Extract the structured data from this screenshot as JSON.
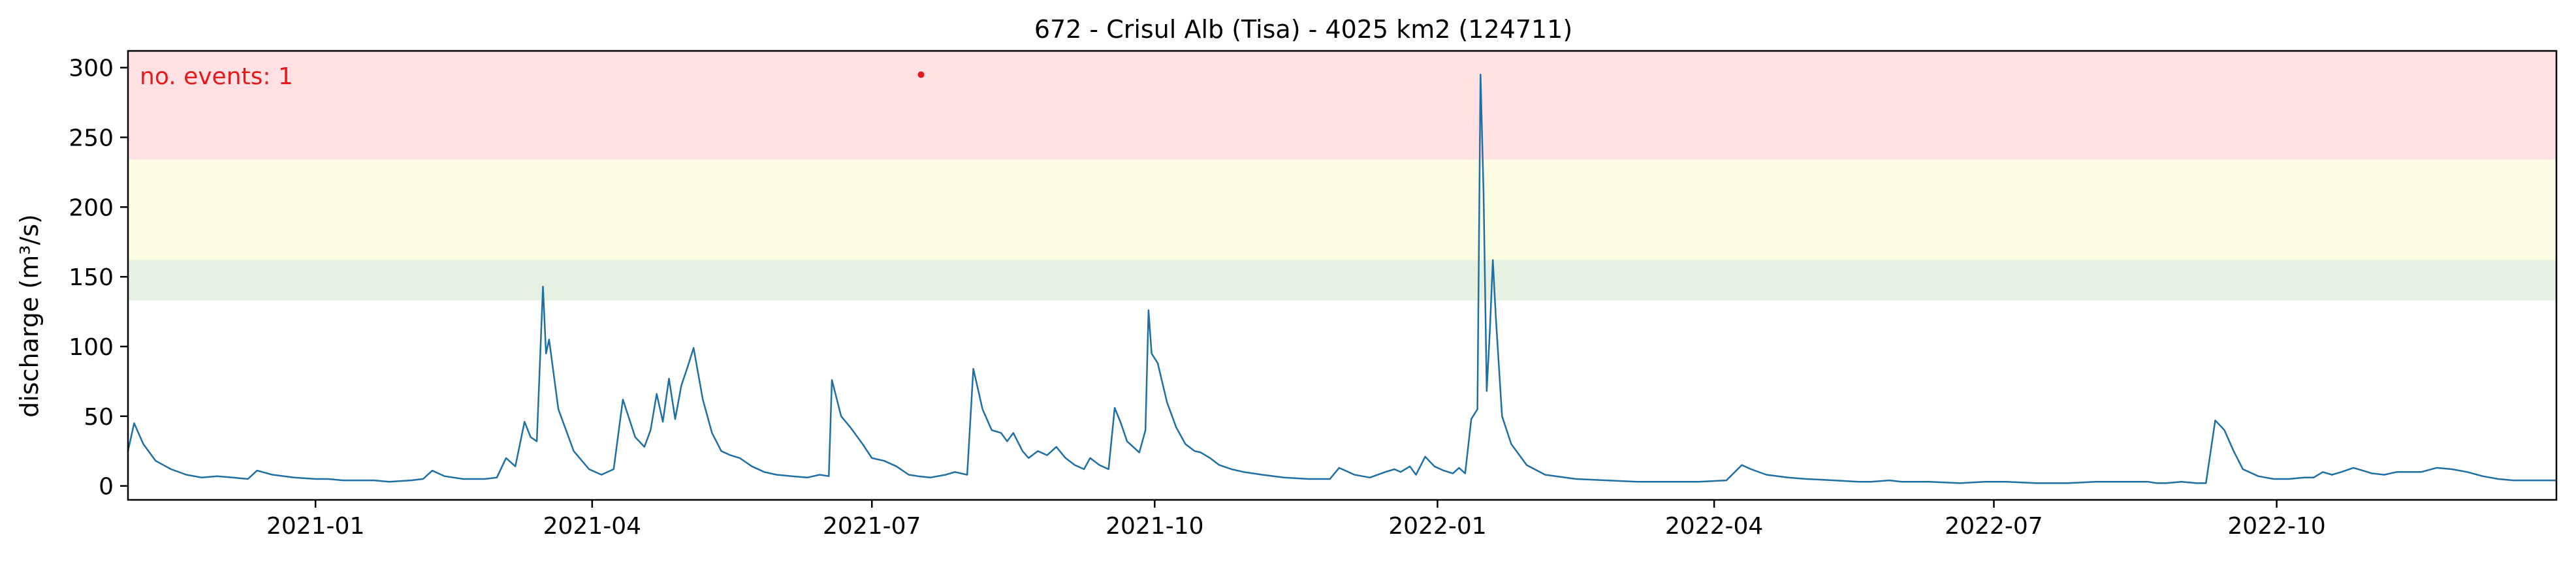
{
  "chart_data": {
    "type": "line",
    "title": "672 - Crisul Alb (Tisa) - 4025 km2 (124711)",
    "xlabel": "",
    "ylabel": "discharge (m³/s)",
    "annotation": "no. events: 1",
    "xlim": [
      "2020-11-01",
      "2022-12-31"
    ],
    "ylim": [
      -10,
      312
    ],
    "grid": false,
    "x_ticks": [
      "2021-01-01",
      "2021-04-01",
      "2021-07-01",
      "2021-10-01",
      "2022-01-01",
      "2022-04-01",
      "2022-07-01",
      "2022-10-01"
    ],
    "x_tick_labels": [
      "2021-01",
      "2021-04",
      "2021-07",
      "2021-10",
      "2022-01",
      "2022-04",
      "2022-07",
      "2022-10"
    ],
    "y_ticks": [
      0,
      50,
      100,
      150,
      200,
      250,
      300
    ],
    "y_tick_labels": [
      "0",
      "50",
      "100",
      "150",
      "200",
      "250",
      "300"
    ],
    "threshold_bands": [
      {
        "name": "low",
        "y0": 133,
        "y1": 162,
        "color": "#e6f0e3"
      },
      {
        "name": "medium",
        "y0": 162,
        "y1": 234,
        "color": "#fdfde3"
      },
      {
        "name": "high",
        "y0": 234,
        "y1": 312,
        "color": "#ffe1e4"
      }
    ],
    "colors": {
      "line": "#1f6fa5",
      "event": "#e31a1c",
      "annotation": "#e31a1c"
    },
    "events": [
      {
        "x": "2021-07-17",
        "y": 295
      }
    ],
    "series": [
      {
        "values": [
          [
            "2020-11-01",
            25
          ],
          [
            "2020-11-03",
            45
          ],
          [
            "2020-11-06",
            30
          ],
          [
            "2020-11-10",
            18
          ],
          [
            "2020-11-15",
            12
          ],
          [
            "2020-11-20",
            8
          ],
          [
            "2020-11-25",
            6
          ],
          [
            "2020-11-30",
            7
          ],
          [
            "2020-12-05",
            6
          ],
          [
            "2020-12-10",
            5
          ],
          [
            "2020-12-13",
            11
          ],
          [
            "2020-12-18",
            8
          ],
          [
            "2020-12-25",
            6
          ],
          [
            "2021-01-01",
            5
          ],
          [
            "2021-01-05",
            5
          ],
          [
            "2021-01-10",
            4
          ],
          [
            "2021-01-15",
            4
          ],
          [
            "2021-01-20",
            4
          ],
          [
            "2021-01-25",
            3
          ],
          [
            "2021-02-01",
            4
          ],
          [
            "2021-02-05",
            5
          ],
          [
            "2021-02-08",
            11
          ],
          [
            "2021-02-12",
            7
          ],
          [
            "2021-02-18",
            5
          ],
          [
            "2021-02-25",
            5
          ],
          [
            "2021-03-01",
            6
          ],
          [
            "2021-03-04",
            20
          ],
          [
            "2021-03-07",
            14
          ],
          [
            "2021-03-10",
            46
          ],
          [
            "2021-03-12",
            35
          ],
          [
            "2021-03-14",
            32
          ],
          [
            "2021-03-16",
            143
          ],
          [
            "2021-03-17",
            95
          ],
          [
            "2021-03-18",
            105
          ],
          [
            "2021-03-21",
            55
          ],
          [
            "2021-03-26",
            25
          ],
          [
            "2021-03-31",
            12
          ],
          [
            "2021-04-04",
            8
          ],
          [
            "2021-04-08",
            12
          ],
          [
            "2021-04-11",
            62
          ],
          [
            "2021-04-15",
            35
          ],
          [
            "2021-04-18",
            28
          ],
          [
            "2021-04-20",
            40
          ],
          [
            "2021-04-22",
            66
          ],
          [
            "2021-04-24",
            46
          ],
          [
            "2021-04-26",
            77
          ],
          [
            "2021-04-28",
            48
          ],
          [
            "2021-04-30",
            72
          ],
          [
            "2021-05-02",
            85
          ],
          [
            "2021-05-04",
            99
          ],
          [
            "2021-05-07",
            62
          ],
          [
            "2021-05-10",
            38
          ],
          [
            "2021-05-13",
            25
          ],
          [
            "2021-05-16",
            22
          ],
          [
            "2021-05-19",
            20
          ],
          [
            "2021-05-23",
            14
          ],
          [
            "2021-05-27",
            10
          ],
          [
            "2021-05-31",
            8
          ],
          [
            "2021-06-05",
            7
          ],
          [
            "2021-06-10",
            6
          ],
          [
            "2021-06-14",
            8
          ],
          [
            "2021-06-17",
            7
          ],
          [
            "2021-06-18",
            76
          ],
          [
            "2021-06-21",
            50
          ],
          [
            "2021-06-24",
            42
          ],
          [
            "2021-06-28",
            30
          ],
          [
            "2021-07-01",
            20
          ],
          [
            "2021-07-05",
            18
          ],
          [
            "2021-07-09",
            14
          ],
          [
            "2021-07-13",
            8
          ],
          [
            "2021-07-16",
            7
          ],
          [
            "2021-07-20",
            6
          ],
          [
            "2021-07-25",
            8
          ],
          [
            "2021-07-28",
            10
          ],
          [
            "2021-08-01",
            8
          ],
          [
            "2021-08-03",
            84
          ],
          [
            "2021-08-06",
            55
          ],
          [
            "2021-08-09",
            40
          ],
          [
            "2021-08-12",
            38
          ],
          [
            "2021-08-14",
            32
          ],
          [
            "2021-08-16",
            38
          ],
          [
            "2021-08-19",
            25
          ],
          [
            "2021-08-21",
            20
          ],
          [
            "2021-08-24",
            25
          ],
          [
            "2021-08-27",
            22
          ],
          [
            "2021-08-30",
            28
          ],
          [
            "2021-09-02",
            20
          ],
          [
            "2021-09-05",
            15
          ],
          [
            "2021-09-08",
            12
          ],
          [
            "2021-09-10",
            20
          ],
          [
            "2021-09-13",
            15
          ],
          [
            "2021-09-16",
            12
          ],
          [
            "2021-09-18",
            56
          ],
          [
            "2021-09-20",
            45
          ],
          [
            "2021-09-22",
            32
          ],
          [
            "2021-09-24",
            28
          ],
          [
            "2021-09-26",
            24
          ],
          [
            "2021-09-28",
            40
          ],
          [
            "2021-09-29",
            126
          ],
          [
            "2021-09-30",
            95
          ],
          [
            "2021-10-02",
            88
          ],
          [
            "2021-10-05",
            60
          ],
          [
            "2021-10-08",
            42
          ],
          [
            "2021-10-11",
            30
          ],
          [
            "2021-10-14",
            25
          ],
          [
            "2021-10-16",
            24
          ],
          [
            "2021-10-19",
            20
          ],
          [
            "2021-10-22",
            15
          ],
          [
            "2021-10-26",
            12
          ],
          [
            "2021-10-30",
            10
          ],
          [
            "2021-11-05",
            8
          ],
          [
            "2021-11-12",
            6
          ],
          [
            "2021-11-20",
            5
          ],
          [
            "2021-11-27",
            5
          ],
          [
            "2021-11-30",
            13
          ],
          [
            "2021-12-05",
            8
          ],
          [
            "2021-12-10",
            6
          ],
          [
            "2021-12-15",
            10
          ],
          [
            "2021-12-18",
            12
          ],
          [
            "2021-12-20",
            10
          ],
          [
            "2021-12-23",
            14
          ],
          [
            "2021-12-25",
            8
          ],
          [
            "2021-12-28",
            21
          ],
          [
            "2021-12-31",
            14
          ],
          [
            "2022-01-03",
            11
          ],
          [
            "2022-01-06",
            9
          ],
          [
            "2022-01-08",
            13
          ],
          [
            "2022-01-10",
            9
          ],
          [
            "2022-01-12",
            48
          ],
          [
            "2022-01-14",
            55
          ],
          [
            "2022-01-15",
            295
          ],
          [
            "2022-01-16",
            210
          ],
          [
            "2022-01-17",
            68
          ],
          [
            "2022-01-18",
            110
          ],
          [
            "2022-01-19",
            162
          ],
          [
            "2022-01-20",
            120
          ],
          [
            "2022-01-22",
            50
          ],
          [
            "2022-01-25",
            30
          ],
          [
            "2022-01-30",
            15
          ],
          [
            "2022-02-05",
            8
          ],
          [
            "2022-02-15",
            5
          ],
          [
            "2022-02-25",
            4
          ],
          [
            "2022-03-07",
            3
          ],
          [
            "2022-03-17",
            3
          ],
          [
            "2022-03-27",
            3
          ],
          [
            "2022-04-05",
            4
          ],
          [
            "2022-04-10",
            15
          ],
          [
            "2022-04-13",
            12
          ],
          [
            "2022-04-18",
            8
          ],
          [
            "2022-04-25",
            6
          ],
          [
            "2022-05-01",
            5
          ],
          [
            "2022-05-10",
            4
          ],
          [
            "2022-05-18",
            3
          ],
          [
            "2022-05-22",
            3
          ],
          [
            "2022-05-28",
            4
          ],
          [
            "2022-06-01",
            3
          ],
          [
            "2022-06-10",
            3
          ],
          [
            "2022-06-20",
            2
          ],
          [
            "2022-06-28",
            3
          ],
          [
            "2022-07-05",
            3
          ],
          [
            "2022-07-15",
            2
          ],
          [
            "2022-07-25",
            2
          ],
          [
            "2022-08-03",
            3
          ],
          [
            "2022-08-10",
            3
          ],
          [
            "2022-08-15",
            3
          ],
          [
            "2022-08-20",
            3
          ],
          [
            "2022-08-23",
            2
          ],
          [
            "2022-08-26",
            2
          ],
          [
            "2022-08-31",
            3
          ],
          [
            "2022-09-05",
            2
          ],
          [
            "2022-09-08",
            2
          ],
          [
            "2022-09-11",
            47
          ],
          [
            "2022-09-14",
            40
          ],
          [
            "2022-09-17",
            25
          ],
          [
            "2022-09-20",
            12
          ],
          [
            "2022-09-25",
            7
          ],
          [
            "2022-09-30",
            5
          ],
          [
            "2022-10-05",
            5
          ],
          [
            "2022-10-10",
            6
          ],
          [
            "2022-10-13",
            6
          ],
          [
            "2022-10-16",
            10
          ],
          [
            "2022-10-19",
            8
          ],
          [
            "2022-10-22",
            10
          ],
          [
            "2022-10-26",
            13
          ],
          [
            "2022-10-29",
            11
          ],
          [
            "2022-11-01",
            9
          ],
          [
            "2022-11-05",
            8
          ],
          [
            "2022-11-09",
            10
          ],
          [
            "2022-11-13",
            10
          ],
          [
            "2022-11-17",
            10
          ],
          [
            "2022-11-22",
            13
          ],
          [
            "2022-11-27",
            12
          ],
          [
            "2022-12-02",
            10
          ],
          [
            "2022-12-07",
            7
          ],
          [
            "2022-12-12",
            5
          ],
          [
            "2022-12-17",
            4
          ],
          [
            "2022-12-22",
            4
          ],
          [
            "2022-12-26",
            4
          ],
          [
            "2022-12-31",
            4
          ]
        ]
      }
    ]
  }
}
